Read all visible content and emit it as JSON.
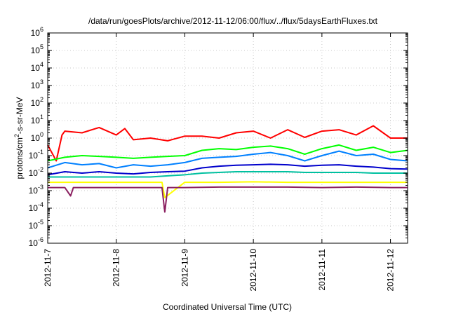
{
  "chart_data": {
    "type": "line",
    "title": "/data/run/goesPlots/archive/2012-11-12/06:00/flux/../flux/5daysEarthFluxes.txt",
    "xlabel": "Coordinated Universal Time (UTC)",
    "ylabel": "protons/cm²-s-sr-MeV",
    "y_scale": "log",
    "ylim": [
      1e-06,
      1000000.0
    ],
    "xlim": [
      "2012-11-07",
      "2012-11-12T06:00"
    ],
    "y_ticks": [
      {
        "value": 1e-06,
        "base": "10",
        "exp": "-6"
      },
      {
        "value": 1e-05,
        "base": "10",
        "exp": "-5"
      },
      {
        "value": 0.0001,
        "base": "10",
        "exp": "-4"
      },
      {
        "value": 0.001,
        "base": "10",
        "exp": "-3"
      },
      {
        "value": 0.01,
        "base": "10",
        "exp": "-2"
      },
      {
        "value": 0.1,
        "base": "10",
        "exp": "-1"
      },
      {
        "value": 1,
        "base": "10",
        "exp": "0"
      },
      {
        "value": 10,
        "base": "10",
        "exp": "1"
      },
      {
        "value": 100,
        "base": "10",
        "exp": "2"
      },
      {
        "value": 1000,
        "base": "10",
        "exp": "3"
      },
      {
        "value": 10000,
        "base": "10",
        "exp": "4"
      },
      {
        "value": 100000,
        "base": "10",
        "exp": "5"
      },
      {
        "value": 1000000,
        "base": "10",
        "exp": "6"
      }
    ],
    "x_ticks": [
      "2012-11-7",
      "2012-11-8",
      "2012-11-9",
      "2012-11-10",
      "2012-11-11",
      "2012-11-12"
    ],
    "grid": true,
    "legend": "none",
    "series": [
      {
        "color": "#ff0000",
        "x": [
          "2012-11-07T00:00",
          "2012-11-07T03:00",
          "2012-11-07T05:00",
          "2012-11-07T06:00",
          "2012-11-07T12:00",
          "2012-11-07T18:00",
          "2012-11-08T00:00",
          "2012-11-08T03:00",
          "2012-11-08T06:00",
          "2012-11-08T12:00",
          "2012-11-08T18:00",
          "2012-11-09T00:00",
          "2012-11-09T06:00",
          "2012-11-09T12:00",
          "2012-11-09T18:00",
          "2012-11-10T00:00",
          "2012-11-10T06:00",
          "2012-11-10T12:00",
          "2012-11-10T18:00",
          "2012-11-11T00:00",
          "2012-11-11T06:00",
          "2012-11-11T12:00",
          "2012-11-11T18:00",
          "2012-11-12T00:00",
          "2012-11-12T06:00"
        ],
        "y": [
          0.4,
          0.05,
          1.5,
          2.5,
          2.0,
          4.0,
          1.5,
          3.5,
          0.8,
          1.0,
          0.7,
          1.3,
          1.3,
          1.0,
          2.0,
          2.5,
          1.0,
          3.0,
          1.1,
          2.5,
          3.0,
          1.5,
          5.0,
          1.0,
          1.0
        ]
      },
      {
        "color": "#00ff00",
        "x": [
          "2012-11-07T00:00",
          "2012-11-07T06:00",
          "2012-11-07T12:00",
          "2012-11-07T18:00",
          "2012-11-08T00:00",
          "2012-11-08T06:00",
          "2012-11-08T12:00",
          "2012-11-08T18:00",
          "2012-11-09T00:00",
          "2012-11-09T06:00",
          "2012-11-09T12:00",
          "2012-11-09T18:00",
          "2012-11-10T00:00",
          "2012-11-10T06:00",
          "2012-11-10T12:00",
          "2012-11-10T18:00",
          "2012-11-11T00:00",
          "2012-11-11T06:00",
          "2012-11-11T12:00",
          "2012-11-11T18:00",
          "2012-11-12T00:00",
          "2012-11-12T06:00"
        ],
        "y": [
          0.05,
          0.08,
          0.1,
          0.09,
          0.08,
          0.07,
          0.08,
          0.09,
          0.1,
          0.2,
          0.25,
          0.22,
          0.3,
          0.35,
          0.25,
          0.12,
          0.25,
          0.4,
          0.2,
          0.3,
          0.15,
          0.2
        ]
      },
      {
        "color": "#0080ff",
        "x": [
          "2012-11-07T00:00",
          "2012-11-07T06:00",
          "2012-11-07T12:00",
          "2012-11-07T18:00",
          "2012-11-08T00:00",
          "2012-11-08T06:00",
          "2012-11-08T12:00",
          "2012-11-08T18:00",
          "2012-11-09T00:00",
          "2012-11-09T06:00",
          "2012-11-09T12:00",
          "2012-11-09T18:00",
          "2012-11-10T00:00",
          "2012-11-10T06:00",
          "2012-11-10T12:00",
          "2012-11-10T18:00",
          "2012-11-11T00:00",
          "2012-11-11T06:00",
          "2012-11-11T12:00",
          "2012-11-11T18:00",
          "2012-11-12T00:00",
          "2012-11-12T06:00"
        ],
        "y": [
          0.02,
          0.04,
          0.03,
          0.035,
          0.02,
          0.03,
          0.025,
          0.03,
          0.04,
          0.07,
          0.08,
          0.09,
          0.12,
          0.15,
          0.1,
          0.05,
          0.1,
          0.18,
          0.1,
          0.12,
          0.06,
          0.05
        ]
      },
      {
        "color": "#0000cc",
        "x": [
          "2012-11-07T00:00",
          "2012-11-07T06:00",
          "2012-11-07T12:00",
          "2012-11-07T18:00",
          "2012-11-08T00:00",
          "2012-11-08T06:00",
          "2012-11-08T12:00",
          "2012-11-08T18:00",
          "2012-11-09T00:00",
          "2012-11-09T06:00",
          "2012-11-09T12:00",
          "2012-11-09T18:00",
          "2012-11-10T00:00",
          "2012-11-10T06:00",
          "2012-11-10T12:00",
          "2012-11-10T18:00",
          "2012-11-11T00:00",
          "2012-11-11T06:00",
          "2012-11-11T12:00",
          "2012-11-11T18:00",
          "2012-11-12T00:00",
          "2012-11-12T06:00"
        ],
        "y": [
          0.008,
          0.012,
          0.01,
          0.012,
          0.01,
          0.009,
          0.011,
          0.012,
          0.013,
          0.02,
          0.025,
          0.028,
          0.03,
          0.032,
          0.03,
          0.025,
          0.028,
          0.03,
          0.025,
          0.022,
          0.018,
          0.017
        ]
      },
      {
        "color": "#00c0a0",
        "x": [
          "2012-11-07T00:00",
          "2012-11-07T06:00",
          "2012-11-07T12:00",
          "2012-11-07T18:00",
          "2012-11-08T00:00",
          "2012-11-08T06:00",
          "2012-11-08T12:00",
          "2012-11-08T18:00",
          "2012-11-09T00:00",
          "2012-11-09T06:00",
          "2012-11-09T12:00",
          "2012-11-09T18:00",
          "2012-11-10T00:00",
          "2012-11-10T06:00",
          "2012-11-10T12:00",
          "2012-11-10T18:00",
          "2012-11-11T00:00",
          "2012-11-11T06:00",
          "2012-11-11T12:00",
          "2012-11-11T18:00",
          "2012-11-12T00:00",
          "2012-11-12T06:00"
        ],
        "y": [
          0.006,
          0.006,
          0.006,
          0.006,
          0.006,
          0.006,
          0.006,
          0.007,
          0.008,
          0.01,
          0.011,
          0.012,
          0.012,
          0.012,
          0.012,
          0.011,
          0.011,
          0.011,
          0.011,
          0.01,
          0.01,
          0.01
        ]
      },
      {
        "color": "#ffff00",
        "x": [
          "2012-11-07T00:00",
          "2012-11-07T12:00",
          "2012-11-08T00:00",
          "2012-11-08T12:00",
          "2012-11-08T16:00",
          "2012-11-08T17:00",
          "2012-11-09T00:00",
          "2012-11-09T12:00",
          "2012-11-10T00:00",
          "2012-11-10T12:00",
          "2012-11-11T00:00",
          "2012-11-11T12:00",
          "2012-11-12T00:00",
          "2012-11-12T06:00"
        ],
        "y": [
          0.003,
          0.003,
          0.003,
          0.003,
          0.003,
          0.0004,
          0.003,
          0.003,
          0.0032,
          0.003,
          0.003,
          0.003,
          0.003,
          0.003
        ]
      },
      {
        "color": "#8b2060",
        "x": [
          "2012-11-07T00:00",
          "2012-11-07T06:00",
          "2012-11-07T08:00",
          "2012-11-07T09:00",
          "2012-11-07T12:00",
          "2012-11-08T00:00",
          "2012-11-08T12:00",
          "2012-11-08T16:00",
          "2012-11-08T17:00",
          "2012-11-08T18:00",
          "2012-11-09T00:00",
          "2012-11-09T12:00",
          "2012-11-10T00:00",
          "2012-11-10T12:00",
          "2012-11-11T00:00",
          "2012-11-11T12:00",
          "2012-11-12T00:00",
          "2012-11-12T06:00"
        ],
        "y": [
          0.0015,
          0.0015,
          0.0005,
          0.0015,
          0.0015,
          0.0015,
          0.0015,
          0.0015,
          6e-05,
          0.0015,
          0.0015,
          0.0016,
          0.0016,
          0.0016,
          0.0015,
          0.0016,
          0.0015,
          0.0015
        ]
      }
    ]
  }
}
